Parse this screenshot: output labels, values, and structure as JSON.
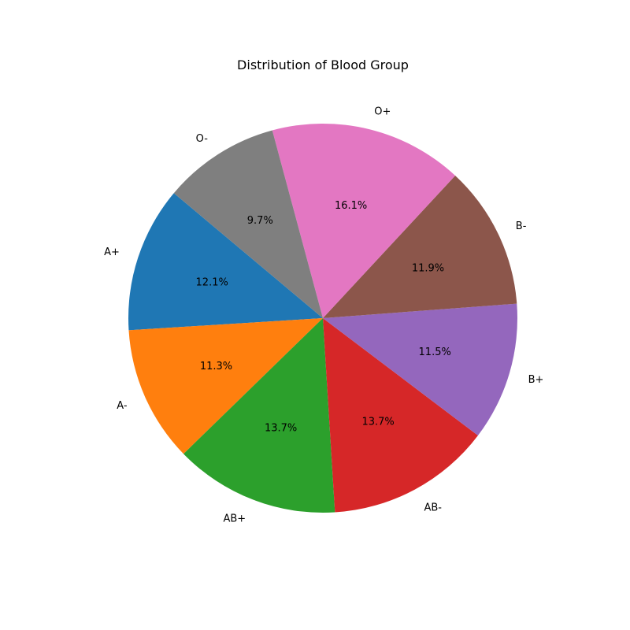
{
  "chart_data": {
    "type": "pie",
    "title": "Distribution of Blood Group",
    "categories": [
      "A+",
      "A-",
      "AB+",
      "AB-",
      "B+",
      "B-",
      "O+",
      "O-"
    ],
    "values": [
      12.1,
      11.3,
      13.7,
      13.7,
      11.5,
      11.9,
      16.1,
      9.7
    ],
    "value_labels": [
      "12.1%",
      "11.3%",
      "13.7%",
      "13.7%",
      "11.5%",
      "11.9%",
      "16.1%",
      "9.7%"
    ],
    "colors": [
      "#1f77b4",
      "#ff7f0e",
      "#2ca02c",
      "#d62728",
      "#9467bd",
      "#8c564b",
      "#e377c2",
      "#7f7f7f"
    ],
    "start_angle_deg": 140,
    "direction": "counterclockwise",
    "legend": "none"
  }
}
